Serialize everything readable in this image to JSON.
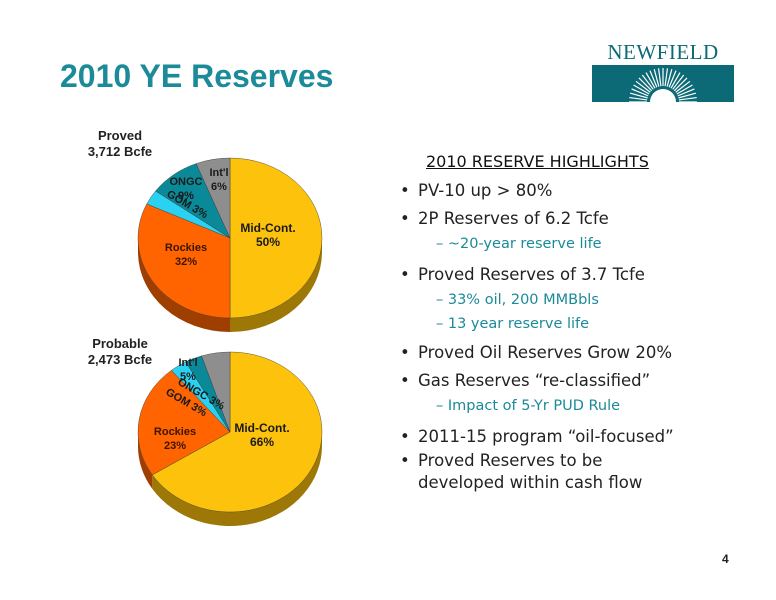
{
  "title": "2010 YE Reserves",
  "logo": {
    "text": "NEWFIELD",
    "colors": {
      "primary": "#0b6a76"
    }
  },
  "page_number": "4",
  "colors": {
    "mid_cont": "#fdc20b",
    "rockies": "#ff6400",
    "gom": "#2ad1f0",
    "ongc": "#0a8a99",
    "intl": "#8e8e8e",
    "title": "#1b8a99"
  },
  "chart_data": [
    {
      "type": "pie",
      "title": "Proved",
      "subtitle": "3,712 Bcfe",
      "slices": [
        {
          "label": "Mid-Cont.",
          "value": 50,
          "value_label": "50%"
        },
        {
          "label": "Rockies",
          "value": 32,
          "value_label": "32%"
        },
        {
          "label": "GOM",
          "value": 3,
          "value_label": "3%"
        },
        {
          "label": "ONGC",
          "value": 9,
          "value_label": "9%"
        },
        {
          "label": "Int'l",
          "value": 6,
          "value_label": "6%"
        }
      ]
    },
    {
      "type": "pie",
      "title": "Probable",
      "subtitle": "2,473 Bcfe",
      "slices": [
        {
          "label": "Mid-Cont.",
          "value": 66,
          "value_label": "66%"
        },
        {
          "label": "Rockies",
          "value": 23,
          "value_label": "23%"
        },
        {
          "label": "GOM",
          "value": 3,
          "value_label": "3%"
        },
        {
          "label": "ONGC",
          "value": 3,
          "value_label": "3%"
        },
        {
          "label": "Int'l",
          "value": 5,
          "value_label": "5%"
        }
      ]
    }
  ],
  "highlights": {
    "title": "2010 RESERVE HIGHLIGHTS",
    "items": [
      {
        "text": "PV-10 up > 80%",
        "level": 1
      },
      {
        "text": "2P Reserves of 6.2 Tcfe",
        "level": 1
      },
      {
        "text": "~20-year reserve life",
        "level": 2
      },
      {
        "text": "Proved Reserves of 3.7 Tcfe",
        "level": 1
      },
      {
        "text": "33% oil, 200 MMBbls",
        "level": 2
      },
      {
        "text": "13 year reserve life",
        "level": 2
      },
      {
        "text": "Proved Oil Reserves Grow 20%",
        "level": 1
      },
      {
        "text": "Gas Reserves “re-classified”",
        "level": 1
      },
      {
        "text": "Impact of 5-Yr PUD Rule",
        "level": 2
      },
      {
        "text": "2011-15 program “oil-focused”",
        "level": 1
      },
      {
        "text": "Proved Reserves to be",
        "level": 1
      },
      {
        "text": "developed within cash flow",
        "level": 3
      }
    ]
  }
}
